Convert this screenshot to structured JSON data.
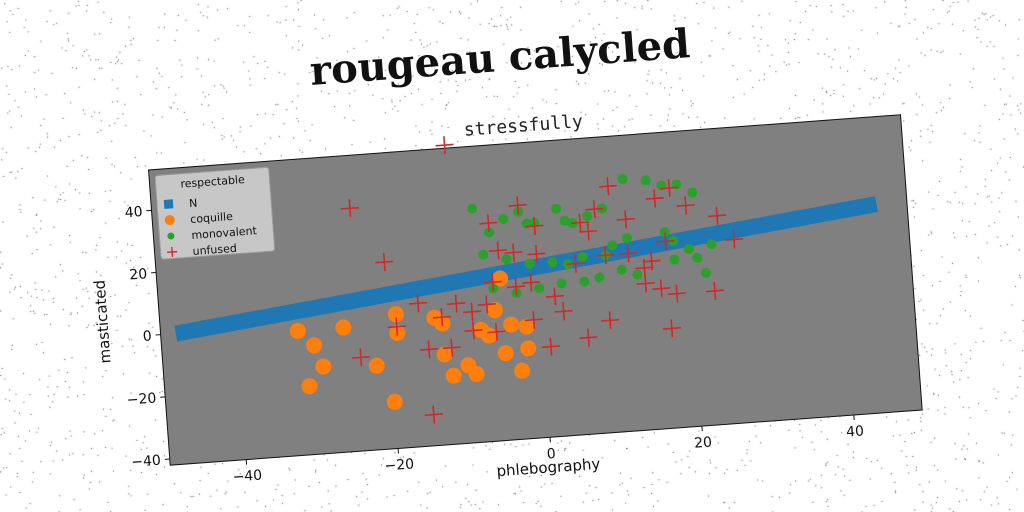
{
  "title": "rougeau calycled",
  "chart_data": {
    "type": "scatter",
    "subtitle": "stressfully",
    "xlabel": "phlebography",
    "ylabel": "masticated",
    "xlim": [
      -50,
      49
    ],
    "ylim": [
      -42,
      53
    ],
    "xticks": [
      -40,
      -20,
      0,
      20,
      40
    ],
    "yticks": [
      -40,
      -20,
      0,
      20,
      40
    ],
    "grid": false,
    "background": "#808080",
    "legend": {
      "title": "respectable",
      "position": "top-left"
    },
    "series": [
      {
        "name": "N",
        "kind": "line",
        "color": "#1f77b4",
        "points": [
          [
            -48,
            0
          ],
          [
            45,
            25
          ]
        ]
      },
      {
        "name": "coquille",
        "kind": "scatter",
        "marker": "circle",
        "color": "#ff7f0e",
        "points": [
          [
            -32,
            -2
          ],
          [
            -30,
            -7
          ],
          [
            -29,
            -14
          ],
          [
            -31,
            -20
          ],
          [
            -26,
            -2
          ],
          [
            -22,
            -15
          ],
          [
            -20,
            -27
          ],
          [
            -19,
            -5
          ],
          [
            -19,
            1
          ],
          [
            -14,
            -1
          ],
          [
            -13,
            -3
          ],
          [
            -13,
            -13
          ],
          [
            -12,
            -20
          ],
          [
            -10,
            -17
          ],
          [
            -9,
            -20
          ],
          [
            -8,
            -6
          ],
          [
            -7,
            -8
          ],
          [
            -6,
            0
          ],
          [
            -5,
            -14
          ],
          [
            -4,
            -5
          ],
          [
            -2,
            -13
          ],
          [
            -3,
            -20
          ],
          [
            -2,
            -6
          ],
          [
            -5,
            10
          ]
        ]
      },
      {
        "name": "monovalent",
        "kind": "scatter",
        "marker": "dot",
        "color": "#2ca02c",
        "points": [
          [
            -8,
            33
          ],
          [
            -6,
            25
          ],
          [
            -4,
            29
          ],
          [
            -2,
            31
          ],
          [
            -1,
            27
          ],
          [
            0,
            27
          ],
          [
            3,
            31
          ],
          [
            4,
            27
          ],
          [
            5,
            26
          ],
          [
            7,
            28
          ],
          [
            9,
            30
          ],
          [
            12,
            39
          ],
          [
            15,
            38
          ],
          [
            17,
            36
          ],
          [
            19,
            36
          ],
          [
            21,
            33
          ],
          [
            -7,
            18
          ],
          [
            -4,
            16
          ],
          [
            -1,
            14
          ],
          [
            2,
            14
          ],
          [
            4,
            13
          ],
          [
            6,
            15
          ],
          [
            9,
            15
          ],
          [
            10,
            18
          ],
          [
            12,
            20
          ],
          [
            17,
            21
          ],
          [
            18,
            18
          ],
          [
            20,
            15
          ],
          [
            21,
            12
          ],
          [
            23,
            16
          ],
          [
            18,
            12
          ],
          [
            -6,
            7
          ],
          [
            -3,
            5
          ],
          [
            0,
            6
          ],
          [
            3,
            7
          ],
          [
            6,
            7
          ],
          [
            8,
            8
          ],
          [
            11,
            10
          ],
          [
            13,
            8
          ],
          [
            22,
            7
          ]
        ]
      },
      {
        "name": "unfused",
        "kind": "scatter",
        "marker": "plus",
        "color": "#d62728",
        "points": [
          [
            -11,
            54
          ],
          [
            -24,
            36
          ],
          [
            -20,
            18
          ],
          [
            -6,
            28
          ],
          [
            -2,
            33
          ],
          [
            0,
            26
          ],
          [
            -5,
            19
          ],
          [
            -3,
            18
          ],
          [
            0,
            17
          ],
          [
            -16,
            4
          ],
          [
            -13,
            -1
          ],
          [
            -11,
            3
          ],
          [
            -9,
            0
          ],
          [
            -7,
            2
          ],
          [
            -9,
            -6
          ],
          [
            -6,
            -7
          ],
          [
            -12,
            -11
          ],
          [
            -15,
            -11
          ],
          [
            -19,
            -3
          ],
          [
            -24,
            -12
          ],
          [
            -15,
            -32
          ],
          [
            -6,
            9
          ],
          [
            -1,
            8
          ],
          [
            2,
            3
          ],
          [
            5,
            13
          ],
          [
            7,
            23
          ],
          [
            8,
            30
          ],
          [
            12,
            26
          ],
          [
            15,
            12
          ],
          [
            17,
            18
          ],
          [
            20,
            29
          ],
          [
            24,
            25
          ],
          [
            26,
            17
          ],
          [
            10,
            37
          ],
          [
            16,
            32
          ],
          [
            18,
            35
          ],
          [
            6,
            26
          ],
          [
            9,
            15
          ],
          [
            12,
            15
          ],
          [
            14,
            5
          ],
          [
            16,
            3
          ],
          [
            18,
            1
          ],
          [
            23,
            1
          ],
          [
            14,
            10
          ],
          [
            3,
            -2
          ],
          [
            -1,
            -4
          ],
          [
            6,
            -11
          ],
          [
            9,
            -6
          ],
          [
            1,
            -13
          ],
          [
            17,
            -10
          ],
          [
            -3,
            7
          ]
        ]
      }
    ]
  }
}
